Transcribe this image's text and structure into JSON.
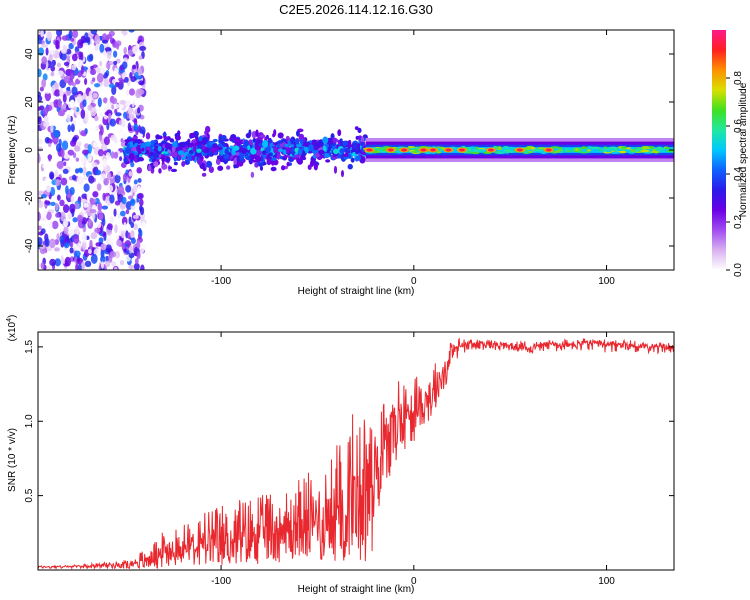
{
  "figure_title": "C2E5.2026.114.12.16.G30",
  "chart_data": [
    {
      "type": "heatmap",
      "title": "C2E5.2026.114.12.16.G30",
      "xlabel": "Height of straight line (km)",
      "ylabel": "Frequency (Hz)",
      "xlim": [
        -195,
        135
      ],
      "ylim": [
        -50,
        50
      ],
      "xticks": [
        -100,
        0,
        100
      ],
      "xtick_labels": [
        "-100",
        "0",
        "100"
      ],
      "yticks": [
        -40,
        -20,
        0,
        20,
        40
      ],
      "ytick_labels": [
        "-40",
        "-20",
        "0",
        "20",
        "40"
      ],
      "colorbar": {
        "label": "Normalized spectral amplitude",
        "range": [
          0.0,
          1.0
        ],
        "ticks": [
          0.0,
          0.2,
          0.4,
          0.6,
          0.8
        ],
        "tick_labels": [
          "0.0",
          "0.2",
          "0.4",
          "0.6",
          "0.8"
        ],
        "colors": [
          "#ffffff",
          "#d8b0f0",
          "#a04cf0",
          "#6a00e6",
          "#2a1ae8",
          "#1060ff",
          "#00c8ff",
          "#20e8a0",
          "#40e020",
          "#d8e000",
          "#ff9000",
          "#ff2020",
          "#ff1a8c"
        ]
      },
      "regions": [
        {
          "description": "scattered noise",
          "x_range": [
            -195,
            -140
          ],
          "freq_spread": 50,
          "typical_amplitude": 0.2
        },
        {
          "description": "broad band",
          "x_range": [
            -150,
            -25
          ],
          "freq_spread": 10,
          "typical_amplitude": 0.3
        },
        {
          "description": "narrow band",
          "x_range": [
            -25,
            135
          ],
          "freq_spread": 3,
          "typical_amplitude": 0.55
        },
        {
          "description": "peaks",
          "x_values": [
            -23,
            -12,
            -5,
            5,
            10,
            18,
            25,
            40,
            55,
            70
          ],
          "amplitude": 1.0
        }
      ]
    },
    {
      "type": "line",
      "xlabel": "Height of straight line (km)",
      "ylabel": "SNR (10 * v/v)",
      "y_scale_label": "(x10^4)",
      "y_scale_base": "x10",
      "y_scale_exp": "4",
      "xlim": [
        -195,
        135
      ],
      "ylim": [
        0,
        1.6
      ],
      "xticks": [
        -100,
        0,
        100
      ],
      "xtick_labels": [
        "-100",
        "0",
        "100"
      ],
      "yticks": [
        0.5,
        1.0,
        1.5
      ],
      "ytick_labels": [
        "0.5",
        "1.0",
        "1.5"
      ],
      "series": [
        {
          "color": "#e8282e",
          "x": [
            -195,
            -180,
            -160,
            -145,
            -135,
            -128,
            -120,
            -110,
            -100,
            -90,
            -80,
            -70,
            -60,
            -50,
            -40,
            -35,
            -30,
            -25,
            -22,
            -20,
            -15,
            -10,
            -5,
            0,
            5,
            10,
            15,
            20,
            25,
            30,
            35,
            40,
            50,
            60,
            70,
            80,
            90,
            100,
            110,
            120,
            130,
            135
          ],
          "y": [
            0.02,
            0.02,
            0.03,
            0.04,
            0.06,
            0.1,
            0.12,
            0.13,
            0.15,
            0.17,
            0.19,
            0.2,
            0.22,
            0.25,
            0.28,
            0.32,
            0.38,
            0.45,
            0.5,
            0.62,
            0.78,
            0.9,
            1.0,
            1.05,
            1.1,
            1.18,
            1.3,
            1.45,
            1.5,
            1.52,
            1.52,
            1.52,
            1.5,
            1.49,
            1.51,
            1.5,
            1.52,
            1.5,
            1.51,
            1.49,
            1.5,
            1.48
          ],
          "envelope_max": [
            0.03,
            0.03,
            0.05,
            0.08,
            0.2,
            0.3,
            0.3,
            0.38,
            0.43,
            0.48,
            0.5,
            0.55,
            0.62,
            0.7,
            0.85,
            1.0,
            1.1,
            1.25,
            1.3,
            1.15,
            1.2,
            1.25,
            1.3,
            1.35,
            1.35,
            1.38,
            1.45,
            1.55,
            1.56,
            1.55,
            1.55,
            1.55,
            1.54,
            1.53,
            1.55,
            1.55,
            1.56,
            1.55,
            1.55,
            1.53,
            1.53,
            1.52
          ],
          "envelope_min": [
            0.01,
            0.01,
            0.01,
            0.01,
            0.01,
            0.02,
            0.03,
            0.03,
            0.03,
            0.04,
            0.04,
            0.05,
            0.05,
            0.05,
            0.06,
            0.06,
            0.07,
            0.05,
            0.05,
            0.35,
            0.55,
            0.7,
            0.8,
            0.85,
            0.95,
            1.0,
            1.15,
            1.35,
            1.45,
            1.48,
            1.48,
            1.48,
            1.47,
            1.46,
            1.47,
            1.46,
            1.47,
            1.46,
            1.47,
            1.45,
            1.46,
            1.45
          ]
        }
      ]
    }
  ]
}
